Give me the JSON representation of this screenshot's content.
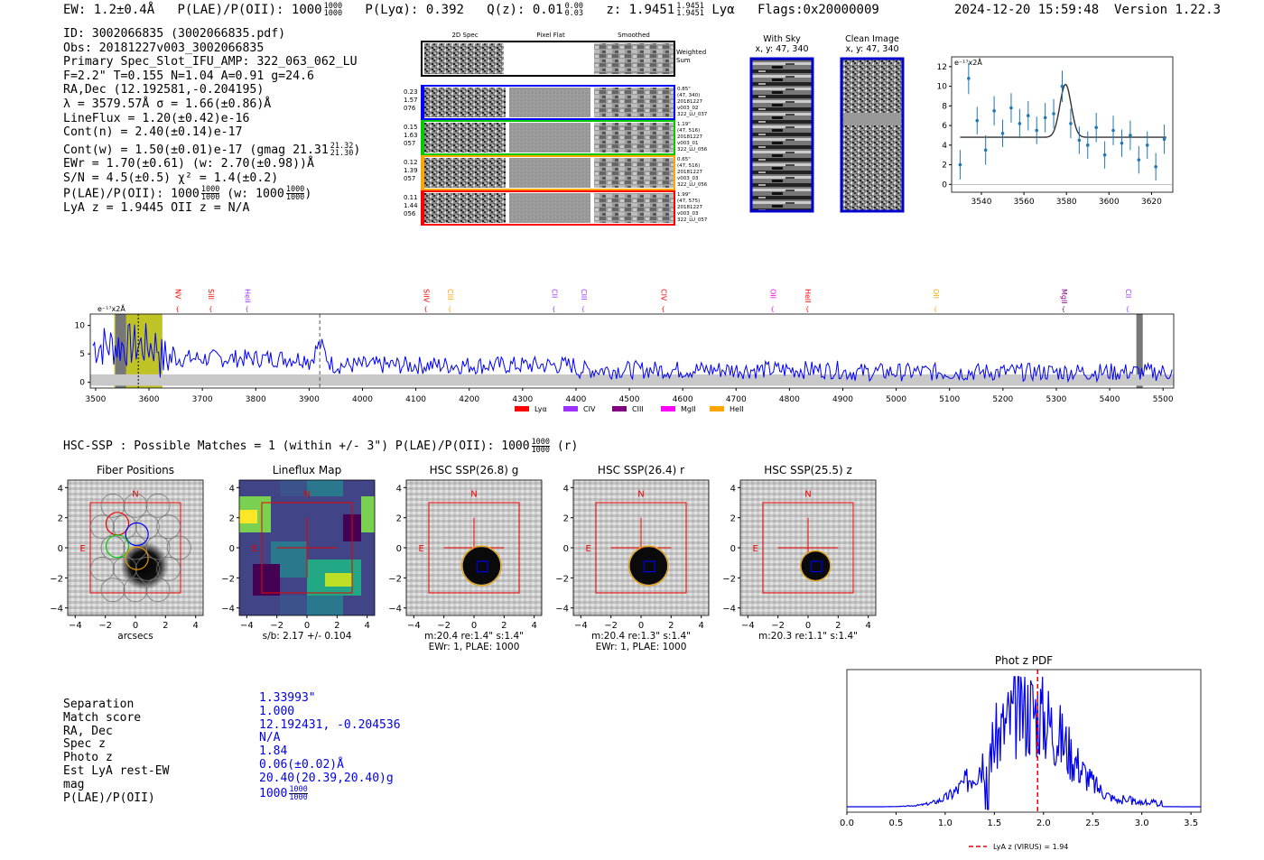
{
  "header": {
    "ew": "EW: 1.2±0.4Å",
    "plae_label": "P(LAE)/P(OII): 1000",
    "plae_hi": "1000",
    "plae_lo": "1000",
    "plya": "P(Lyα): 0.392",
    "qz_label": "Q(z): 0.01",
    "qz_hi": "0.00",
    "qz_lo": "0.03",
    "z_label": "z: 1.9451",
    "z_hi": "1.9451",
    "z_lo": "1.9451",
    "lya": "Lyα",
    "flags": "Flags:0x20000009",
    "timestamp": "2024-12-20 15:59:48",
    "version": "Version 1.22.3"
  },
  "info": {
    "lines": [
      "ID: 3002066835 (3002066835.pdf)",
      "Obs: 20181227v003_3002066835",
      "Primary Spec_Slot_IFU_AMP: 322_063_062_LU",
      "F=2.2\"  T=0.155  N=1.04  A=0.91  g=24.6",
      "RA,Dec (12.192581,-0.204195)",
      "λ = 3579.57Å  σ = 1.66(±0.86)Å",
      "LineFlux = 1.20(±0.42)e-16",
      "Cont(n) = 2.40(±0.14)e-17"
    ],
    "contw": "Cont(w) = 1.50(±0.01)e-17 (gmag 21.31",
    "contw_hi": "21.32",
    "contw_lo": "21.30",
    "contw_end": ")",
    "ewr": "EWr = 1.70(±0.61) (w: 2.70(±0.98))Å",
    "sn": "S/N = 4.5(±0.5)  χ² = 1.4(±0.2)",
    "plae": "P(LAE)/P(OII): 1000",
    "plae_hi": "1000",
    "plae_lo": "1000",
    "plae_w": "(w: 1000",
    "plae_w_hi": "1000",
    "plae_w_lo": "1000",
    "plae_w_end": ")",
    "lyaz": "LyA z = 1.9445  OII z = N/A"
  },
  "cutouts": {
    "col_titles": [
      "2D Spec",
      "Pixel Flat",
      "Smoothed"
    ],
    "weighted": "Weighted Sum",
    "rows": [
      {
        "left": [
          "0.23",
          "1.57",
          "076"
        ],
        "right": [
          "0.85\"",
          "(47, 340)",
          "20181227",
          "v003_02",
          "322_LU_037"
        ],
        "color": "#0000ff"
      },
      {
        "left": [
          "0.15",
          "1.63",
          "057"
        ],
        "right": [
          "1.19\"",
          "(47, 516)",
          "20181227",
          "v003_01",
          "322_LU_056"
        ],
        "color": "#00cc00"
      },
      {
        "left": [
          "0.12",
          "1.39",
          "057"
        ],
        "right": [
          "0.65\"",
          "(47, 516)",
          "20181227",
          "v003_03",
          "322_LU_056"
        ],
        "color": "#ffa500"
      },
      {
        "left": [
          "0.11",
          "1.44",
          "056"
        ],
        "right": [
          "1.99\"",
          "(47, 575)",
          "20181227",
          "v003_03",
          "322_LU_057"
        ],
        "color": "#ff0000"
      }
    ],
    "with_sky": "With Sky",
    "with_sky_xy": "x, y: 47, 340",
    "clean": "Clean Image",
    "clean_xy": "x, y: 47, 340"
  },
  "fit_chart": {
    "unit": "e⁻¹⁷x2Å",
    "x": [
      3530,
      3534,
      3538,
      3542,
      3546,
      3550,
      3554,
      3558,
      3562,
      3566,
      3570,
      3574,
      3578,
      3582,
      3586,
      3590,
      3594,
      3598,
      3602,
      3606,
      3610,
      3614,
      3618,
      3622,
      3626
    ],
    "y": [
      2.0,
      10.8,
      6.5,
      3.5,
      7.5,
      5.2,
      7.8,
      6.2,
      7.0,
      5.5,
      6.8,
      7.2,
      10.0,
      6.2,
      4.5,
      4.0,
      5.8,
      3.0,
      5.5,
      4.2,
      5.0,
      2.5,
      4.0,
      1.8,
      4.6
    ],
    "err": [
      1.5,
      1.6,
      1.4,
      1.5,
      1.5,
      1.4,
      1.5,
      1.5,
      1.5,
      1.4,
      1.5,
      1.5,
      1.6,
      1.5,
      1.4,
      1.4,
      1.5,
      1.4,
      1.5,
      1.4,
      1.5,
      1.4,
      1.4,
      1.4,
      1.5
    ],
    "xticks": [
      3540,
      3560,
      3580,
      3600,
      3620
    ],
    "yticks": [
      0,
      2,
      4,
      6,
      8,
      10,
      12
    ],
    "xlim": [
      3526,
      3630
    ],
    "ylim": [
      -0.8,
      13
    ],
    "model": {
      "continuum": 4.8,
      "amp": 5.4,
      "center": 3579.57,
      "sigma": 1.66
    }
  },
  "spectrum": {
    "unit": "e⁻¹⁷x2Å",
    "xlim": [
      3490,
      5520
    ],
    "ylim": [
      -1,
      12
    ],
    "xticks": [
      3500,
      3600,
      3700,
      3800,
      3900,
      4000,
      4100,
      4200,
      4300,
      4400,
      4500,
      4600,
      4700,
      4800,
      4900,
      5000,
      5100,
      5200,
      5300,
      5400,
      5500
    ],
    "yticks": [
      0,
      5,
      10
    ],
    "lines": [
      {
        "name": "NV",
        "wave": 3650,
        "color": "#ff0000"
      },
      {
        "name": "SiII",
        "wave": 3712,
        "color": "#ff0000"
      },
      {
        "name": "HeII",
        "wave": 3780,
        "color": "#9b30ff"
      },
      {
        "name": "SiIV",
        "wave": 4115,
        "color": "#ff0000"
      },
      {
        "name": "CIII",
        "wave": 4160,
        "color": "#ffa500"
      },
      {
        "name": "CII",
        "wave": 4355,
        "color": "#9b30ff"
      },
      {
        "name": "CIII",
        "wave": 4410,
        "color": "#9b30ff"
      },
      {
        "name": "CIV",
        "wave": 4560,
        "color": "#ff0000"
      },
      {
        "name": "OII",
        "wave": 4765,
        "color": "#ff00ff"
      },
      {
        "name": "HeII",
        "wave": 4830,
        "color": "#ff0000"
      },
      {
        "name": "OII",
        "wave": 5070,
        "color": "#ffa500"
      },
      {
        "name": "MgII",
        "wave": 5310,
        "color": "#800080"
      },
      {
        "name": "CII",
        "wave": 5430,
        "color": "#9b30ff"
      }
    ],
    "legend": [
      {
        "name": "Lyα",
        "color": "#ff0000"
      },
      {
        "name": "CIV",
        "color": "#9b30ff"
      },
      {
        "name": "CIII",
        "color": "#800080"
      },
      {
        "name": "MgII",
        "color": "#ff00ff"
      },
      {
        "name": "HeII",
        "color": "#ffa500"
      }
    ]
  },
  "hsc": {
    "summary": "HSC-SSP : Possible Matches = 1 (within +/- 3\")  P(LAE)/P(OII): 1000",
    "summary_hi": "1000",
    "summary_lo": "1000",
    "summary_end": "(r)",
    "panels": [
      {
        "title": "Fiber Positions",
        "bottom": "arcsecs",
        "bottom2": ""
      },
      {
        "title": "Lineflux Map",
        "bottom": "s/b: 2.17 +/- 0.104",
        "bottom2": ""
      },
      {
        "title": "HSC SSP(26.8) g",
        "bottom": "m:20.4  re:1.4\"  s:1.4\"",
        "bottom2": "EWr: 1, PLAE: 1000"
      },
      {
        "title": "HSC SSP(26.4) r",
        "bottom": "m:20.4  re:1.3\"  s:1.4\"",
        "bottom2": "EWr: 1, PLAE: 1000"
      },
      {
        "title": "HSC SSP(25.5) z",
        "bottom": "m:20.3  re:1.1\"  s:1.4\"",
        "bottom2": ""
      }
    ],
    "ticks": [
      "4",
      "2",
      "0",
      "−2",
      "−4"
    ],
    "xticks": [
      "−4",
      "−2",
      "0",
      "2",
      "4"
    ],
    "north": "N",
    "east": "E"
  },
  "match_table": [
    {
      "label": "Separation",
      "value": "1.33993\""
    },
    {
      "label": "Match score",
      "value": "1.000"
    },
    {
      "label": "RA, Dec",
      "value": "12.192431, -0.204536"
    },
    {
      "label": "Spec z",
      "value": "N/A"
    },
    {
      "label": "Photo z",
      "value": "1.84"
    },
    {
      "label": "Est LyA rest-EW",
      "value": "0.06(±0.02)Å"
    },
    {
      "label": "mag",
      "value": "20.40(20.39,20.40)g"
    },
    {
      "label": "P(LAE)/P(OII)",
      "value": "1000"
    }
  ],
  "match_plae_hi": "1000",
  "match_plae_lo": "1000",
  "pdf_chart": {
    "title": "Phot z PDF",
    "xlim": [
      0,
      3.6
    ],
    "xticks": [
      0.0,
      0.5,
      1.0,
      1.5,
      2.0,
      2.5,
      3.0,
      3.5
    ],
    "xticklabels": [
      "0.0",
      "0.5",
      "1.0",
      "1.5",
      "2.0",
      "2.5",
      "3.0",
      "3.5"
    ],
    "marker_z": 1.94,
    "legend": "LyA z (VIRUS) = 1.94"
  },
  "colors": {
    "spectrum": "#0000ff",
    "fit": "#1f77b4",
    "model": "#333333"
  }
}
